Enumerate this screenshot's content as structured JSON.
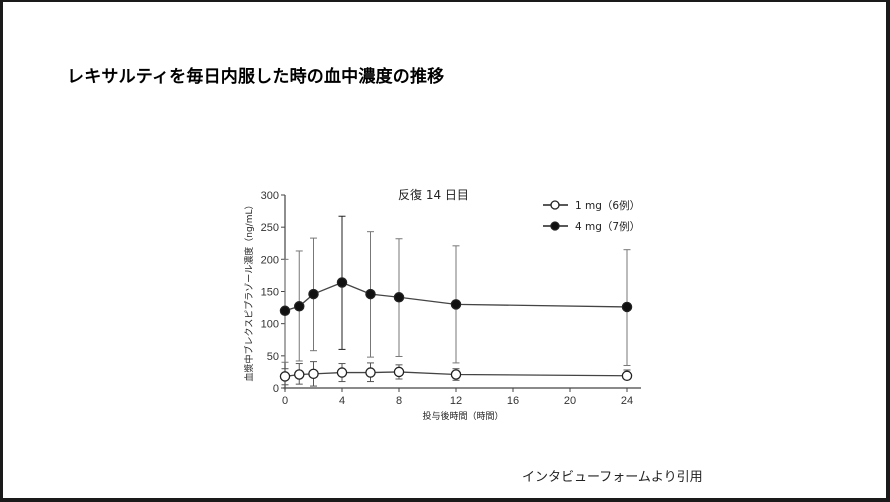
{
  "slide": {
    "title": "レキサルティを毎日内服した時の血中濃度の推移",
    "source_note": "インタビューフォームより引用"
  },
  "chart_data": {
    "type": "line",
    "title": "反復 14 日目",
    "xlabel": "投与後時間（時間）",
    "ylabel": "血漿中ブレクスピプラゾール濃度（ng/mL）",
    "xlim": [
      0,
      25
    ],
    "ylim": [
      0,
      300
    ],
    "xticks": [
      0,
      4,
      8,
      12,
      16,
      20,
      24
    ],
    "yticks": [
      0,
      50,
      100,
      150,
      200,
      250,
      300
    ],
    "grid": false,
    "legend_position": "top-right",
    "x": [
      0,
      1,
      2,
      4,
      6,
      8,
      12,
      24
    ],
    "series": [
      {
        "name": "1 mg（6例）",
        "marker": "open-circle",
        "values": [
          18,
          21,
          22,
          24,
          24,
          25,
          21,
          19
        ],
        "error_upper": [
          30,
          38,
          41,
          38,
          39,
          36,
          30,
          28
        ],
        "error_lower": [
          5,
          6,
          3,
          10,
          10,
          14,
          12,
          14
        ]
      },
      {
        "name": "4 mg（7例）",
        "marker": "filled-circle",
        "values": [
          120,
          127,
          146,
          164,
          146,
          141,
          130,
          126
        ],
        "error_upper": [
          200,
          213,
          233,
          267,
          243,
          232,
          221,
          215
        ],
        "error_lower": [
          40,
          42,
          58,
          60,
          48,
          49,
          39,
          35
        ]
      }
    ]
  }
}
